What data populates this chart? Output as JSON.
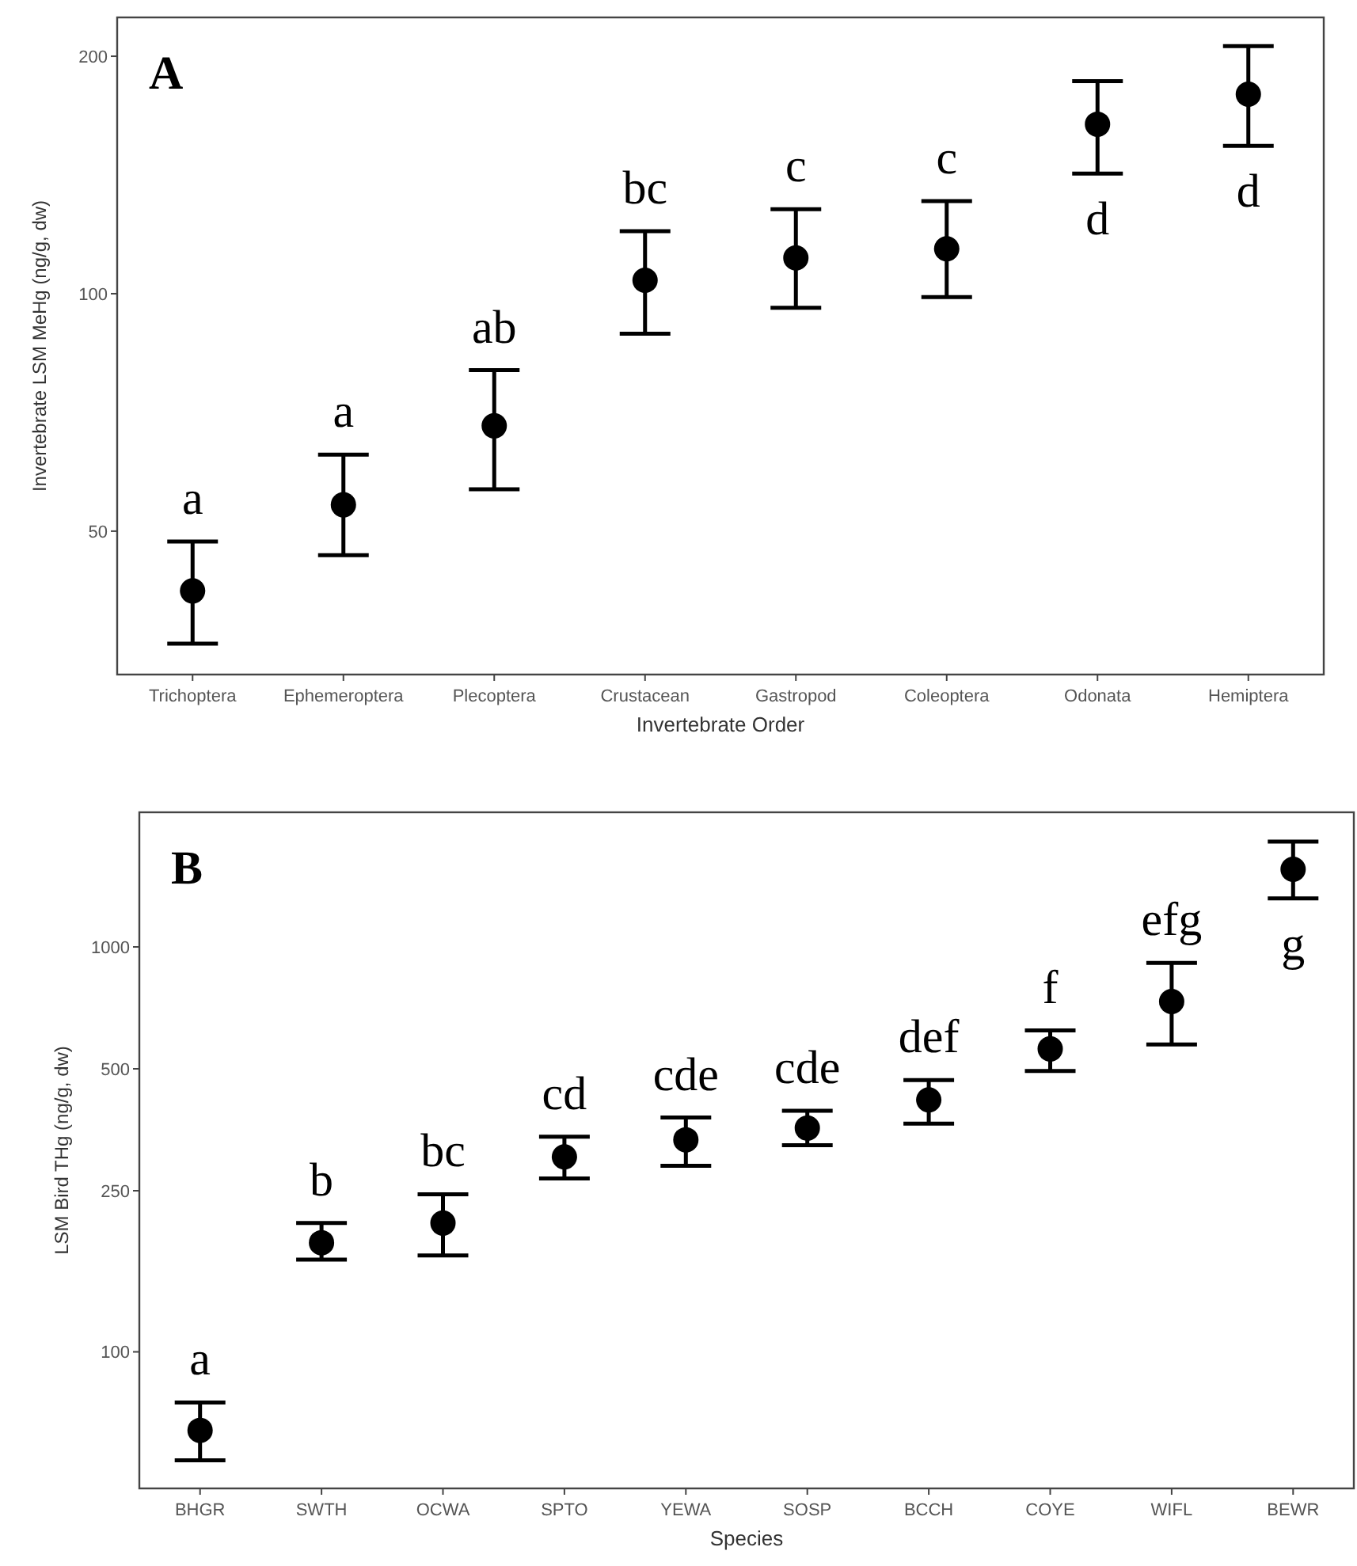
{
  "chart_data": [
    {
      "type": "scatter",
      "xlabel": "Invertebrate Order",
      "ylabel": "Invertebrate LSM MeHg (ng/g, dw)",
      "log": true,
      "ylim": [
        32.9,
        224
      ],
      "yticks": [
        50,
        100,
        200
      ],
      "grid": false,
      "marker": "circle",
      "categories": [
        "Trichoptera",
        "Ephemeroptera",
        "Plecoptera",
        "Crustacean",
        "Gastropod",
        "Coleoptera",
        "Odonata",
        "Hemiptera"
      ],
      "series": [
        {
          "color": "#000000",
          "values": [
            42,
            54,
            68,
            104,
            111,
            114,
            164,
            179
          ],
          "errors": [
            [
              36,
              48.5
            ],
            [
              46.6,
              62.5
            ],
            [
              56.5,
              80
            ],
            [
              89,
              120
            ],
            [
              96,
              128
            ],
            [
              99,
              131
            ],
            [
              142,
              186
            ],
            [
              154,
              206
            ]
          ]
        }
      ],
      "annotations": [
        "A",
        "a",
        "a",
        "ab",
        "bc",
        "c",
        "c",
        "d",
        "d"
      ]
    },
    {
      "type": "scatter",
      "xlabel": "Species",
      "ylabel": "LSM Bird THg (ng/g, dw)",
      "log": true,
      "ylim": [
        46,
        2150
      ],
      "yticks": [
        100,
        250,
        500,
        1000
      ],
      "grid": false,
      "marker": "circle",
      "categories": [
        "BHGR",
        "SWTH",
        "OCWA",
        "SPTO",
        "YEWA",
        "SOSP",
        "BCCH",
        "COYE",
        "WIFL",
        "BEWR"
      ],
      "series": [
        {
          "color": "#000000",
          "values": [
            64,
            186,
            208,
            303,
            334,
            357,
            419,
            560,
            733,
            1555
          ],
          "errors": [
            [
              54,
              75
            ],
            [
              169,
              208
            ],
            [
              173,
              245
            ],
            [
              268,
              340
            ],
            [
              288,
              379
            ],
            [
              324,
              394
            ],
            [
              366,
              469
            ],
            [
              494,
              622
            ],
            [
              574,
              913
            ],
            [
              1318,
              1820
            ]
          ]
        }
      ],
      "annotations": [
        "B",
        "a",
        "b",
        "bc",
        "cd",
        "cde",
        "cde",
        "def",
        "f",
        "efg",
        "g"
      ]
    }
  ]
}
